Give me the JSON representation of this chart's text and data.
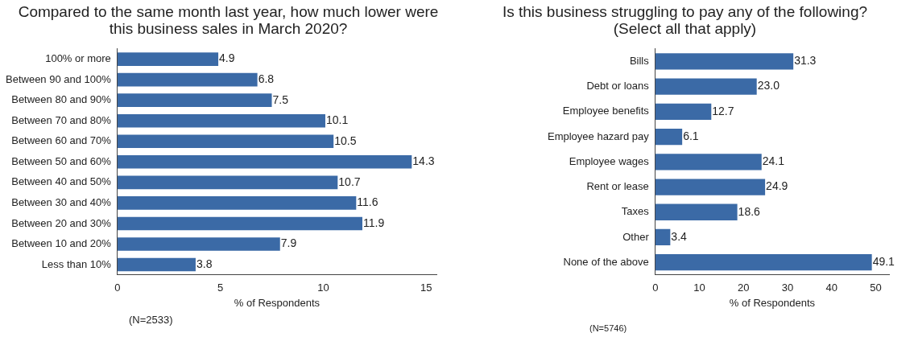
{
  "chart_data": [
    {
      "type": "bar",
      "orientation": "horizontal",
      "title": "Compared to the same month last year, how much lower were this business sales in March 2020?",
      "xlabel": "% of Respondents",
      "categories": [
        "100% or more",
        "Between 90 and 100%",
        "Between 80 and 90%",
        "Between 70 and 80%",
        "Between 60 and 70%",
        "Between 50 and 60%",
        "Between 40 and 50%",
        "Between 30 and 40%",
        "Between 20 and 30%",
        "Between 10 and 20%",
        "Less than 10%"
      ],
      "values": [
        4.9,
        6.8,
        7.5,
        10.1,
        10.5,
        14.3,
        10.7,
        11.6,
        11.9,
        7.9,
        3.8
      ],
      "color": "#3b6aa6",
      "data_labels": true,
      "xlim": [
        0,
        15.5
      ],
      "xticks": [
        0,
        5,
        10,
        15
      ],
      "grid": false,
      "legend": false,
      "annotations": [
        "(N=2533)"
      ]
    },
    {
      "type": "bar",
      "orientation": "horizontal",
      "title": "Is this business struggling to pay any of the following? (Select all that apply)",
      "xlabel": "% of Respondents",
      "categories": [
        "Bills",
        "Debt or loans",
        "Employee benefits",
        "Employee hazard pay",
        "Employee wages",
        "Rent or lease",
        "Taxes",
        "Other",
        "None of the above"
      ],
      "values": [
        31.3,
        23.0,
        12.7,
        6.1,
        24.1,
        24.9,
        18.6,
        3.4,
        49.1
      ],
      "value_labels": [
        "31.3",
        "23.0",
        "12.7",
        "6.1",
        "24.1",
        "24.9",
        "18.6",
        "3.4",
        "49.1"
      ],
      "color": "#3b6aa6",
      "xlim": [
        0,
        53
      ],
      "xticks": [
        0,
        10,
        20,
        30,
        40,
        50
      ],
      "grid": false,
      "legend": false,
      "annotations": [
        "(N=5746)"
      ]
    }
  ]
}
